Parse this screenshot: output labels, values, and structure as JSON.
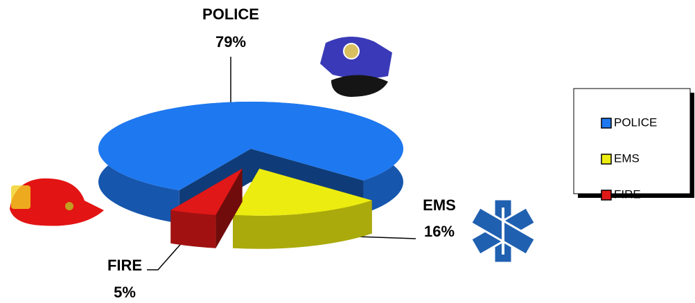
{
  "chart_data": {
    "type": "pie",
    "categories": [
      "POLICE",
      "EMS",
      "FIRE"
    ],
    "values": [
      79,
      16,
      5
    ],
    "value_labels": [
      "79%",
      "16%",
      "5%"
    ],
    "colors": [
      "#1e78f0",
      "#ecec10",
      "#e01818"
    ],
    "legend": "right"
  }
}
